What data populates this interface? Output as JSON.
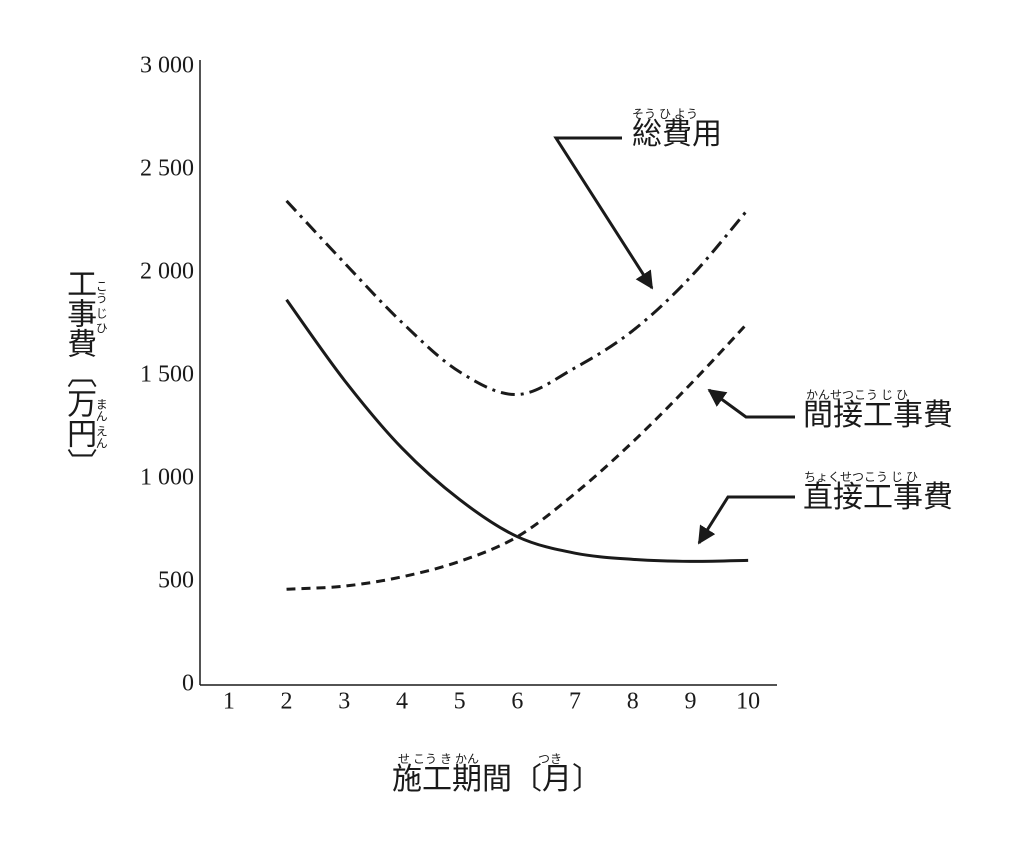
{
  "chart_data": {
    "type": "line",
    "x_label": "施工期間〔月〕",
    "x_label_ruby": [
      "せ こう き かん",
      "つき"
    ],
    "y_label": "工事費〔万円〕",
    "y_label_ruby": [
      "こう じ ひ",
      "まん えん"
    ],
    "x": [
      2,
      3,
      4,
      5,
      6,
      7,
      8,
      9,
      10
    ],
    "series": [
      {
        "name": "総費用",
        "ruby": "そう ひ よう",
        "color": "#1a1a1a",
        "style": "dashdot",
        "values": [
          2350,
          2050,
          1760,
          1520,
          1410,
          1540,
          1720,
          1980,
          2310
        ]
      },
      {
        "name": "間接工事費",
        "ruby": "かんせつこう じ ひ",
        "color": "#1a1a1a",
        "style": "dashed",
        "values": [
          465,
          480,
          525,
          600,
          720,
          930,
          1180,
          1460,
          1760
        ]
      },
      {
        "name": "直接工事費",
        "ruby": "ちょくせつこう じ ひ",
        "color": "#1a1a1a",
        "style": "solid",
        "values": [
          1870,
          1480,
          1150,
          900,
          720,
          640,
          610,
          600,
          605
        ]
      }
    ],
    "xlim": [
      0.5,
      10.5
    ],
    "xticks": [
      1,
      2,
      3,
      4,
      5,
      6,
      7,
      8,
      9,
      10
    ],
    "ylim": [
      0,
      3000
    ],
    "yticks": [
      0,
      500,
      {
        "value": 1000,
        "label": "1 000"
      },
      {
        "value": 1500,
        "label": "1 500"
      },
      {
        "value": 2000,
        "label": "2 000"
      },
      {
        "value": 2500,
        "label": "2 500"
      },
      {
        "value": 3000,
        "label": "3 000"
      }
    ],
    "grid": false
  }
}
